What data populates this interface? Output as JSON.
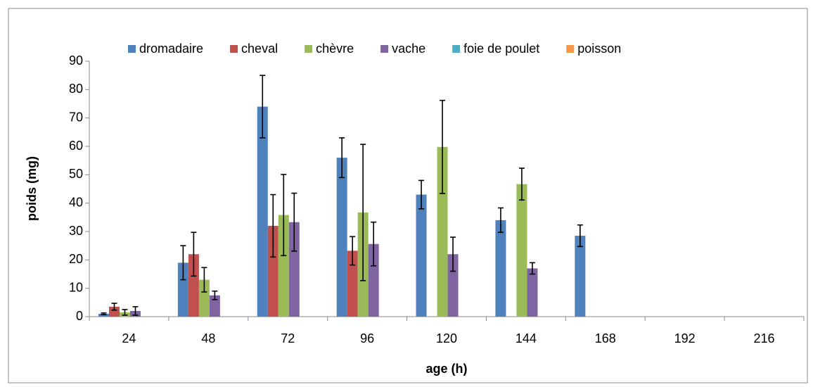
{
  "chart_data": {
    "type": "bar",
    "x_label": "age (h)",
    "y_label": "poids (mg)",
    "categories": [
      24,
      48,
      72,
      96,
      120,
      144,
      168,
      192,
      216
    ],
    "ylim": [
      0,
      90
    ],
    "yticks": [
      0,
      10,
      20,
      30,
      40,
      50,
      60,
      70,
      80,
      90
    ],
    "grid": false,
    "legend": "top",
    "series": [
      {
        "name": "dromadaire",
        "color": "#4f81bd",
        "values": [
          1,
          19,
          74,
          56,
          43,
          34,
          28.5,
          null,
          null
        ],
        "errors": [
          0.3,
          6,
          11,
          7,
          5,
          4.3,
          3.8,
          null,
          null
        ]
      },
      {
        "name": "cheval",
        "color": "#c0504d",
        "values": [
          3.5,
          22,
          32,
          23.2,
          null,
          null,
          null,
          null,
          null
        ],
        "errors": [
          1.2,
          7.7,
          11,
          5,
          null,
          null,
          null,
          null,
          null
        ]
      },
      {
        "name": "chèvre",
        "color": "#9bbb59",
        "values": [
          1.5,
          13,
          35.8,
          36.7,
          59.8,
          46.7,
          null,
          null,
          null
        ],
        "errors": [
          1,
          4.3,
          14.3,
          24,
          16.4,
          5.6,
          null,
          null,
          null
        ]
      },
      {
        "name": "vache",
        "color": "#8064a2",
        "values": [
          2,
          7.5,
          33.3,
          25.6,
          22,
          17,
          null,
          null,
          null
        ],
        "errors": [
          1.5,
          1.5,
          10.2,
          7.7,
          6,
          2,
          null,
          null,
          null
        ]
      },
      {
        "name": "foie de poulet",
        "color": "#4bacc6",
        "values": [
          null,
          null,
          null,
          null,
          null,
          null,
          null,
          null,
          null
        ],
        "errors": [
          null,
          null,
          null,
          null,
          null,
          null,
          null,
          null,
          null
        ]
      },
      {
        "name": "poisson",
        "color": "#f79646",
        "values": [
          null,
          null,
          null,
          null,
          null,
          null,
          null,
          null,
          null
        ],
        "errors": [
          null,
          null,
          null,
          null,
          null,
          null,
          null,
          null,
          null
        ]
      }
    ]
  }
}
